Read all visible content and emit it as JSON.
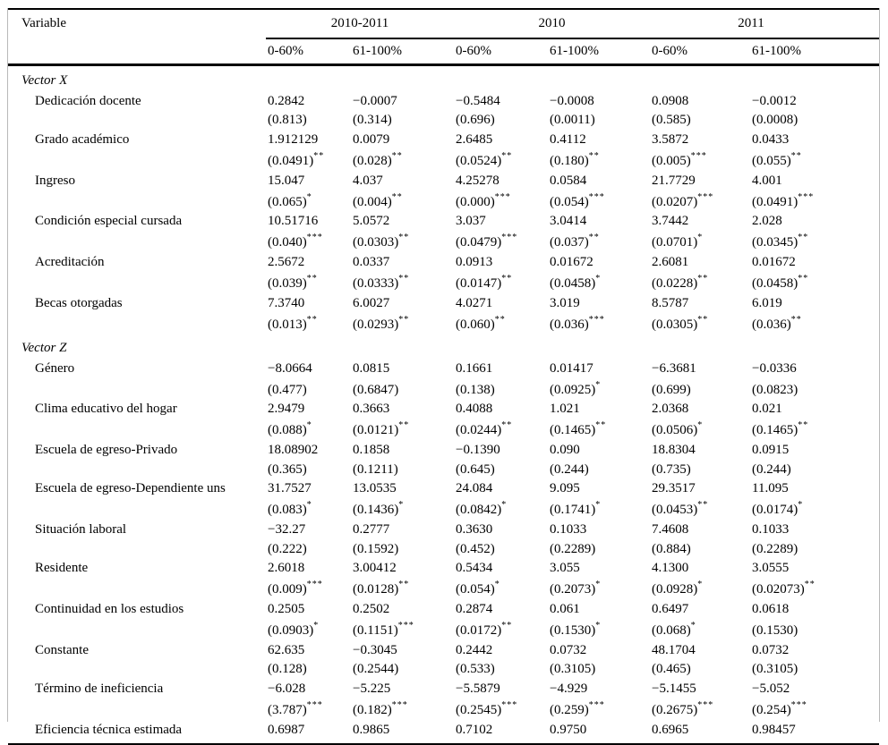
{
  "table": {
    "col_header": "Variable",
    "year_groups": [
      "2010-2011",
      "2010",
      "2011"
    ],
    "sub_headers": [
      "0-60%",
      "61-100%",
      "0-60%",
      "61-100%",
      "0-60%",
      "61-100%"
    ],
    "sections": [
      {
        "title": "Vector X",
        "rows": [
          {
            "label": "Dedicación docente",
            "coef": [
              "0.2842",
              "−0.0007",
              "−0.5484",
              "−0.0008",
              "0.0908",
              "−0.0012"
            ],
            "se": [
              "(0.813)",
              "(0.314)",
              "(0.696)",
              "(0.0011)",
              "(0.585)",
              "(0.0008)"
            ],
            "st": [
              "",
              "",
              "",
              "",
              "",
              ""
            ]
          },
          {
            "label": "Grado académico",
            "coef": [
              "1.912129",
              "0.0079",
              "2.6485",
              "0.4112",
              "3.5872",
              "0.0433"
            ],
            "se": [
              "(0.0491)",
              "(0.028)",
              "(0.0524)",
              "(0.180)",
              "(0.005)",
              "(0.055)"
            ],
            "st": [
              "**",
              "**",
              "**",
              "**",
              "***",
              "**"
            ]
          },
          {
            "label": "Ingreso",
            "coef": [
              "15.047",
              "4.037",
              "4.25278",
              "0.0584",
              "21.7729",
              "4.001"
            ],
            "se": [
              "(0.065)",
              "(0.004)",
              "(0.000)",
              "(0.054)",
              "(0.0207)",
              "(0.0491)"
            ],
            "st": [
              "*",
              "**",
              "***",
              "***",
              "***",
              "***"
            ]
          },
          {
            "label": "Condición especial cursada",
            "coef": [
              "10.51716",
              "5.0572",
              "3.037",
              "3.0414",
              "3.7442",
              "2.028"
            ],
            "se": [
              "(0.040)",
              "(0.0303)",
              "(0.0479)",
              "(0.037)",
              "(0.0701)",
              "(0.0345)"
            ],
            "st": [
              "***",
              "**",
              "***",
              "**",
              "*",
              "**"
            ]
          },
          {
            "label": "Acreditación",
            "coef": [
              "2.5672",
              "0.0337",
              "0.0913",
              "0.01672",
              "2.6081",
              "0.01672"
            ],
            "se": [
              "(0.039)",
              "(0.0333)",
              "(0.0147)",
              "(0.0458)",
              "(0.0228)",
              "(0.0458)"
            ],
            "st": [
              "**",
              "**",
              "**",
              "*",
              "**",
              "**"
            ]
          },
          {
            "label": "Becas otorgadas",
            "coef": [
              "7.3740",
              "6.0027",
              "4.0271",
              "3.019",
              "8.5787",
              "6.019"
            ],
            "se": [
              "(0.013)",
              "(0.0293)",
              "(0.060)",
              "(0.036)",
              "(0.0305)",
              "(0.036)"
            ],
            "st": [
              "**",
              "**",
              "**",
              "***",
              "**",
              "**"
            ]
          }
        ]
      },
      {
        "title": "Vector Z",
        "rows": [
          {
            "label": "Género",
            "coef": [
              "−8.0664",
              "0.0815",
              "0.1661",
              "0.01417",
              "−6.3681",
              "−0.0336"
            ],
            "se": [
              "(0.477)",
              "(0.6847)",
              "(0.138)",
              "(0.0925)",
              "(0.699)",
              "(0.0823)"
            ],
            "st": [
              "",
              "",
              "",
              "*",
              "",
              ""
            ]
          },
          {
            "label": "Clima educativo del hogar",
            "coef": [
              "2.9479",
              "0.3663",
              "0.4088",
              "1.021",
              "2.0368",
              "0.021"
            ],
            "se": [
              "(0.088)",
              "(0.0121)",
              "(0.0244)",
              "(0.1465)",
              "(0.0506)",
              "(0.1465)"
            ],
            "st": [
              "*",
              "**",
              "**",
              "**",
              "*",
              "**"
            ]
          },
          {
            "label": "Escuela de egreso-Privado",
            "coef": [
              "18.08902",
              "0.1858",
              "−0.1390",
              "0.090",
              "18.8304",
              "0.0915"
            ],
            "se": [
              "(0.365)",
              "(0.1211)",
              "(0.645)",
              "(0.244)",
              "(0.735)",
              "(0.244)"
            ],
            "st": [
              "",
              "",
              "",
              "",
              "",
              ""
            ]
          },
          {
            "label": "Escuela de egreso-Dependiente uns",
            "coef": [
              "31.7527",
              "13.0535",
              "24.084",
              "9.095",
              "29.3517",
              "11.095"
            ],
            "se": [
              "(0.083)",
              "(0.1436)",
              "(0.0842)",
              "(0.1741)",
              "(0.0453)",
              "(0.0174)"
            ],
            "st": [
              "*",
              "*",
              "*",
              "*",
              "**",
              "*"
            ]
          },
          {
            "label": "Situación laboral",
            "coef": [
              "−32.27",
              "0.2777",
              "0.3630",
              "0.1033",
              "7.4608",
              "0.1033"
            ],
            "se": [
              "(0.222)",
              "(0.1592)",
              "(0.452)",
              "(0.2289)",
              "(0.884)",
              "(0.2289)"
            ],
            "st": [
              "",
              "",
              "",
              "",
              "",
              ""
            ]
          },
          {
            "label": "Residente",
            "coef": [
              "2.6018",
              "3.00412",
              "0.5434",
              "3.055",
              "4.1300",
              "3.0555"
            ],
            "se": [
              "(0.009)",
              "(0.0128)",
              "(0.054)",
              "(0.2073)",
              "(0.0928)",
              "(0.02073)"
            ],
            "st": [
              "***",
              "**",
              "*",
              "*",
              "*",
              "**"
            ]
          },
          {
            "label": "Continuidad en los estudios",
            "coef": [
              "0.2505",
              "0.2502",
              "0.2874",
              "0.061",
              "0.6497",
              "0.0618"
            ],
            "se": [
              "(0.0903)",
              "(0.1151)",
              "(0.0172)",
              "(0.1530)",
              "(0.068)",
              "(0.1530)"
            ],
            "st": [
              "*",
              "***",
              "**",
              "*",
              "*",
              ""
            ]
          },
          {
            "label": "Constante",
            "coef": [
              "62.635",
              "−0.3045",
              "0.2442",
              "0.0732",
              "48.1704",
              "0.0732"
            ],
            "se": [
              "(0.128)",
              "(0.2544)",
              "(0.533)",
              "(0.3105)",
              "(0.465)",
              "(0.3105)"
            ],
            "st": [
              "",
              "",
              "",
              "",
              "",
              ""
            ]
          },
          {
            "label": "Término de ineficiencia",
            "coef": [
              "−6.028",
              "−5.225",
              "−5.5879",
              "−4.929",
              "−5.1455",
              "−5.052"
            ],
            "se": [
              "(3.787)",
              "(0.182)",
              "(0.2545)",
              "(0.259)",
              "(0.2675)",
              "(0.254)"
            ],
            "st": [
              "***",
              "***",
              "***",
              "***",
              "***",
              "***"
            ]
          },
          {
            "label": "Eficiencia técnica estimada",
            "coef": [
              "0.6987",
              "0.9865",
              "0.7102",
              "0.9750",
              "0.6965",
              "0.98457"
            ],
            "se": null,
            "st": null
          }
        ]
      }
    ]
  }
}
